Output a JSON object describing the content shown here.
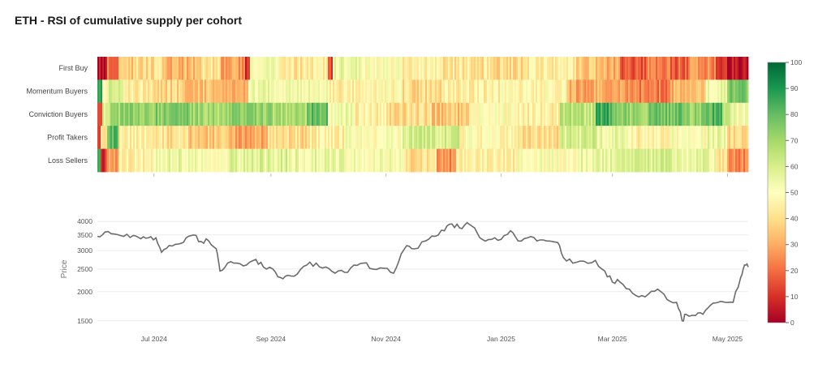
{
  "title": "ETH - RSI of cumulative supply per cohort",
  "colors": {
    "colorscale": [
      "#a50026",
      "#d73027",
      "#f46d43",
      "#fdae61",
      "#fee08b",
      "#ffffbf",
      "#d9ef8b",
      "#a6d96a",
      "#66bd63",
      "#1a9850",
      "#006837"
    ],
    "price_line": "#6b6b6b",
    "grid": "#ebebeb"
  },
  "chart_data": [
    {
      "type": "heatmap",
      "rows": [
        "First Buy",
        "Momentum Buyers",
        "Conviction Buyers",
        "Profit Takers",
        "Loss Sellers"
      ],
      "x_range": [
        "2024-06-01",
        "2025-05-12"
      ],
      "colorbar": {
        "min": 0,
        "max": 100,
        "ticks": [
          0,
          10,
          20,
          30,
          40,
          50,
          60,
          70,
          80,
          90,
          100
        ]
      },
      "segments": {
        "First Buy": [
          [
            "2024-06-01",
            5
          ],
          [
            "2024-06-06",
            22
          ],
          [
            "2024-06-12",
            35
          ],
          [
            "2024-06-20",
            40
          ],
          [
            "2024-07-05",
            32
          ],
          [
            "2024-07-25",
            40
          ],
          [
            "2024-08-05",
            28
          ],
          [
            "2024-08-18",
            10
          ],
          [
            "2024-08-21",
            50
          ],
          [
            "2024-09-05",
            42
          ],
          [
            "2024-09-20",
            45
          ],
          [
            "2024-10-01",
            15
          ],
          [
            "2024-10-04",
            55
          ],
          [
            "2024-10-20",
            50
          ],
          [
            "2024-11-10",
            45
          ],
          [
            "2024-12-01",
            42
          ],
          [
            "2024-12-25",
            40
          ],
          [
            "2025-01-15",
            45
          ],
          [
            "2025-02-10",
            35
          ],
          [
            "2025-02-25",
            30
          ],
          [
            "2025-03-05",
            15
          ],
          [
            "2025-03-20",
            22
          ],
          [
            "2025-04-01",
            18
          ],
          [
            "2025-04-10",
            25
          ],
          [
            "2025-04-25",
            15
          ],
          [
            "2025-05-01",
            5
          ]
        ],
        "Momentum Buyers": [
          [
            "2024-06-01",
            90
          ],
          [
            "2024-06-04",
            50
          ],
          [
            "2024-06-07",
            60
          ],
          [
            "2024-06-15",
            45
          ],
          [
            "2024-07-01",
            38
          ],
          [
            "2024-07-15",
            35
          ],
          [
            "2024-08-01",
            32
          ],
          [
            "2024-08-20",
            55
          ],
          [
            "2024-09-01",
            52
          ],
          [
            "2024-10-01",
            45
          ],
          [
            "2024-10-20",
            48
          ],
          [
            "2024-11-10",
            40
          ],
          [
            "2024-12-01",
            45
          ],
          [
            "2025-01-01",
            48
          ],
          [
            "2025-02-05",
            30
          ],
          [
            "2025-02-25",
            28
          ],
          [
            "2025-03-10",
            22
          ],
          [
            "2025-04-01",
            32
          ],
          [
            "2025-04-20",
            55
          ],
          [
            "2025-05-01",
            75
          ]
        ],
        "Conviction Buyers": [
          [
            "2024-06-01",
            10
          ],
          [
            "2024-06-04",
            60
          ],
          [
            "2024-06-08",
            72
          ],
          [
            "2024-07-01",
            75
          ],
          [
            "2024-07-20",
            70
          ],
          [
            "2024-08-10",
            72
          ],
          [
            "2024-09-01",
            68
          ],
          [
            "2024-09-20",
            80
          ],
          [
            "2024-10-01",
            55
          ],
          [
            "2024-10-15",
            45
          ],
          [
            "2024-11-01",
            40
          ],
          [
            "2024-11-25",
            35
          ],
          [
            "2024-12-15",
            50
          ],
          [
            "2025-01-10",
            45
          ],
          [
            "2025-02-01",
            65
          ],
          [
            "2025-02-20",
            85
          ],
          [
            "2025-03-01",
            72
          ],
          [
            "2025-03-20",
            78
          ],
          [
            "2025-04-10",
            72
          ],
          [
            "2025-04-20",
            82
          ],
          [
            "2025-04-28",
            60
          ],
          [
            "2025-05-05",
            50
          ]
        ],
        "Profit Takers": [
          [
            "2024-06-01",
            10
          ],
          [
            "2024-06-03",
            40
          ],
          [
            "2024-06-06",
            80
          ],
          [
            "2024-06-12",
            45
          ],
          [
            "2024-07-01",
            40
          ],
          [
            "2024-07-20",
            35
          ],
          [
            "2024-08-10",
            30
          ],
          [
            "2024-08-30",
            40
          ],
          [
            "2024-09-20",
            45
          ],
          [
            "2024-10-10",
            50
          ],
          [
            "2024-11-10",
            60
          ],
          [
            "2024-12-10",
            48
          ],
          [
            "2025-01-10",
            40
          ],
          [
            "2025-02-01",
            60
          ],
          [
            "2025-02-20",
            55
          ],
          [
            "2025-03-10",
            45
          ],
          [
            "2025-04-01",
            50
          ],
          [
            "2025-04-20",
            55
          ],
          [
            "2025-05-01",
            40
          ]
        ],
        "Loss Sellers": [
          [
            "2024-06-01",
            80
          ],
          [
            "2024-06-03",
            10
          ],
          [
            "2024-06-05",
            25
          ],
          [
            "2024-06-12",
            45
          ],
          [
            "2024-07-01",
            55
          ],
          [
            "2024-07-20",
            52
          ],
          [
            "2024-08-10",
            58
          ],
          [
            "2024-09-10",
            55
          ],
          [
            "2024-10-10",
            52
          ],
          [
            "2024-11-10",
            40
          ],
          [
            "2024-11-28",
            25
          ],
          [
            "2024-12-08",
            45
          ],
          [
            "2025-01-10",
            50
          ],
          [
            "2025-02-10",
            55
          ],
          [
            "2025-03-10",
            60
          ],
          [
            "2025-04-01",
            55
          ],
          [
            "2025-04-25",
            40
          ],
          [
            "2025-05-01",
            25
          ]
        ]
      }
    },
    {
      "type": "line",
      "ylabel": "Price",
      "y_scale": "log",
      "y_ticks": [
        1500,
        2000,
        2500,
        3000,
        3500,
        4000
      ],
      "y_range": [
        1450,
        4200
      ],
      "x_ticks": [
        {
          "date": "2024-07-01",
          "label": "Jul 2024"
        },
        {
          "date": "2024-09-01",
          "label": "Sep 2024"
        },
        {
          "date": "2024-11-01",
          "label": "Nov 2024"
        },
        {
          "date": "2025-01-01",
          "label": "Jan 2025"
        },
        {
          "date": "2025-03-01",
          "label": "Mar 2025"
        },
        {
          "date": "2025-05-01",
          "label": "May 2025"
        }
      ],
      "series": [
        {
          "x": [
            "2024-06-01",
            "2024-06-05",
            "2024-06-10",
            "2024-06-15",
            "2024-06-20",
            "2024-06-24",
            "2024-06-28",
            "2024-07-02",
            "2024-07-05",
            "2024-07-09",
            "2024-07-14",
            "2024-07-18",
            "2024-07-22",
            "2024-07-26",
            "2024-07-30",
            "2024-08-03",
            "2024-08-05",
            "2024-08-09",
            "2024-08-14",
            "2024-08-19",
            "2024-08-24",
            "2024-08-28",
            "2024-09-02",
            "2024-09-06",
            "2024-09-10",
            "2024-09-15",
            "2024-09-20",
            "2024-09-25",
            "2024-09-30",
            "2024-10-05",
            "2024-10-10",
            "2024-10-15",
            "2024-10-20",
            "2024-10-25",
            "2024-10-31",
            "2024-11-05",
            "2024-11-09",
            "2024-11-12",
            "2024-11-16",
            "2024-11-22",
            "2024-11-27",
            "2024-12-02",
            "2024-12-06",
            "2024-12-10",
            "2024-12-14",
            "2024-12-18",
            "2024-12-22",
            "2024-12-27",
            "2025-01-01",
            "2025-01-06",
            "2025-01-10",
            "2025-01-15",
            "2025-01-20",
            "2025-01-25",
            "2025-01-31",
            "2025-02-03",
            "2025-02-08",
            "2025-02-14",
            "2025-02-20",
            "2025-02-25",
            "2025-03-01",
            "2025-03-05",
            "2025-03-10",
            "2025-03-15",
            "2025-03-20",
            "2025-03-25",
            "2025-03-30",
            "2025-04-04",
            "2025-04-07",
            "2025-04-09",
            "2025-04-14",
            "2025-04-18",
            "2025-04-22",
            "2025-04-26",
            "2025-04-30",
            "2025-05-04",
            "2025-05-08",
            "2025-05-10",
            "2025-05-12"
          ],
          "y": [
            3450,
            3600,
            3530,
            3450,
            3480,
            3370,
            3400,
            3400,
            2950,
            3150,
            3200,
            3400,
            3500,
            3280,
            3300,
            3050,
            2450,
            2650,
            2650,
            2600,
            2750,
            2550,
            2500,
            2300,
            2350,
            2380,
            2600,
            2650,
            2550,
            2400,
            2420,
            2600,
            2650,
            2500,
            2520,
            2400,
            2900,
            3150,
            3050,
            3300,
            3450,
            3650,
            3900,
            3750,
            3950,
            3750,
            3350,
            3350,
            3350,
            3650,
            3300,
            3400,
            3300,
            3300,
            3250,
            2800,
            2650,
            2700,
            2720,
            2450,
            2200,
            2200,
            2050,
            1900,
            1950,
            2050,
            1850,
            1800,
            1500,
            1600,
            1580,
            1600,
            1750,
            1800,
            1800,
            1800,
            2300,
            2600,
            2550
          ]
        }
      ]
    }
  ]
}
